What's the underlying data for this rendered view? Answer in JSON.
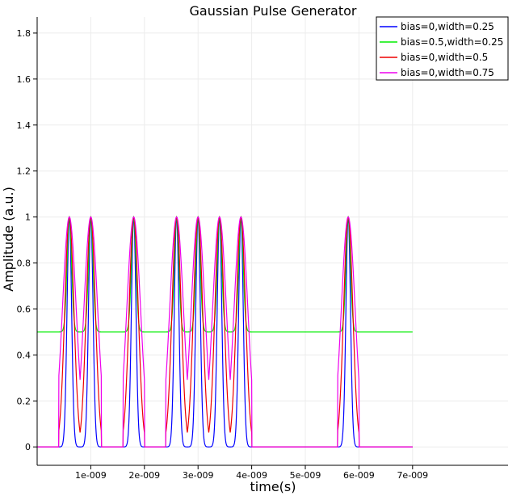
{
  "chart_data": {
    "type": "line",
    "title": "Gaussian Pulse Generator",
    "xlabel": "time(s)",
    "ylabel": "Amplitude (a.u.)",
    "xlim": [
      0,
      8.78e-09
    ],
    "ylim": [
      -0.08,
      1.87
    ],
    "grid": true,
    "legend_position": "top-right",
    "x_ticks": [
      1e-09,
      2e-09,
      3e-09,
      4e-09,
      5e-09,
      6e-09,
      7e-09
    ],
    "x_tick_labels": [
      "1e-009",
      "2e-009",
      "3e-009",
      "4e-009",
      "5e-009",
      "6e-009",
      "7e-009"
    ],
    "y_ticks": [
      0,
      0.2,
      0.4,
      0.6,
      0.8,
      1,
      1.2,
      1.4,
      1.6,
      1.8
    ],
    "y_tick_labels": [
      "0",
      "0.2",
      "0.4",
      "0.6",
      "0.8",
      "1",
      "1.2",
      "1.4",
      "1.6",
      "1.8"
    ],
    "x_range": [
      0,
      7e-09
    ],
    "bits": [
      0,
      1,
      1,
      0,
      1,
      0,
      1,
      1,
      1,
      1,
      0,
      0,
      0,
      0,
      1,
      0
    ],
    "bit_period": 4e-10,
    "bit_center_offset": 2e-10,
    "series": [
      {
        "name": "bias=0,width=0.25",
        "color": "#0000ff",
        "bias": 0,
        "width": 0.25
      },
      {
        "name": "bias=0.5,width=0.25",
        "color": "#00ee00",
        "bias": 0.5,
        "width": 0.25
      },
      {
        "name": "bias=0,width=0.5",
        "color": "#ee0000",
        "bias": 0,
        "width": 0.5
      },
      {
        "name": "bias=0,width=0.75",
        "color": "#ee00ee",
        "bias": 0,
        "width": 0.75
      }
    ]
  }
}
